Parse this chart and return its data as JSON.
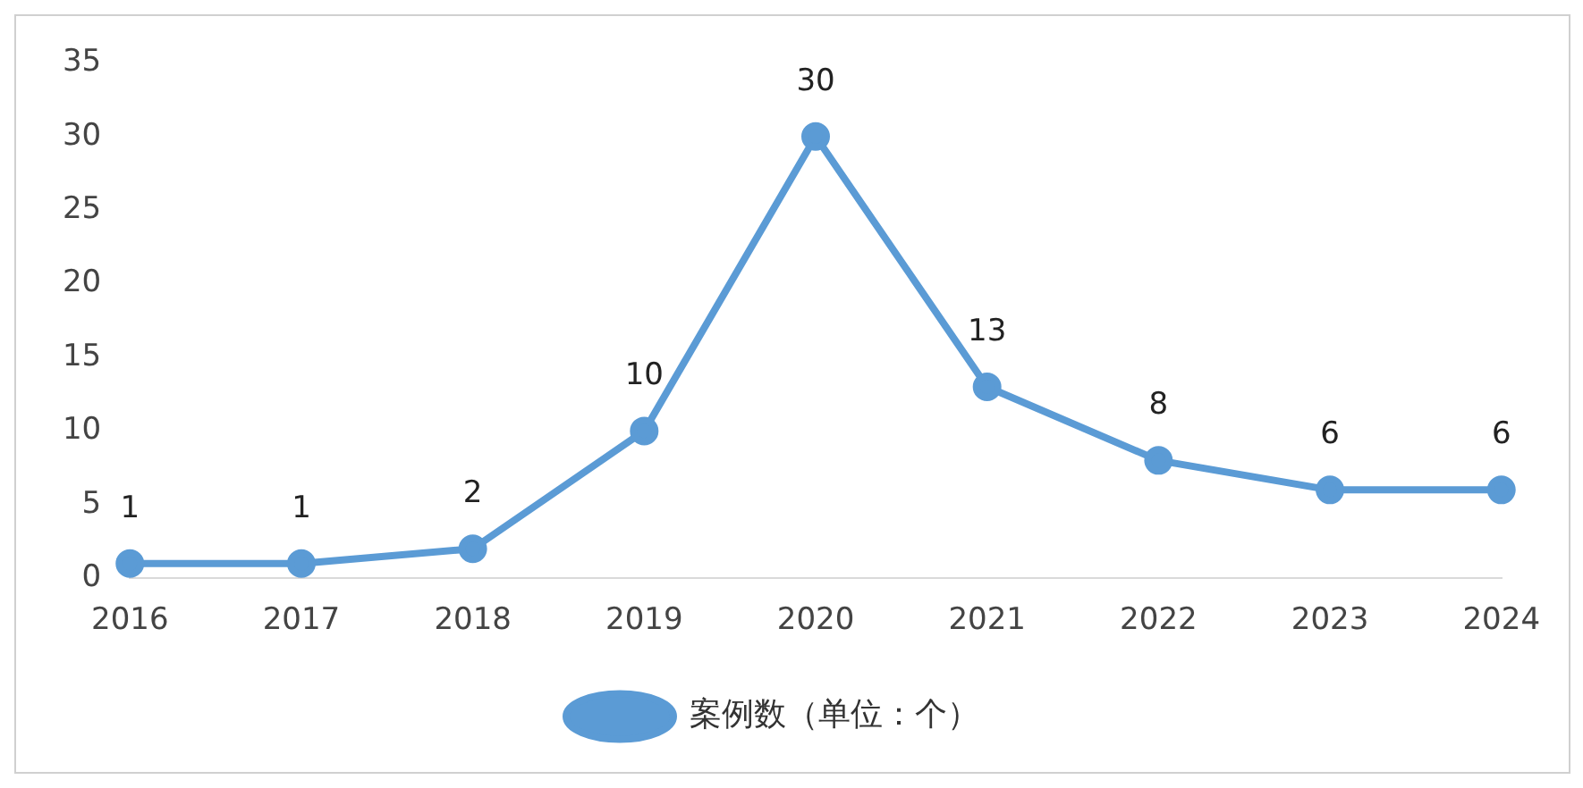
{
  "chart_data": {
    "type": "line",
    "categories": [
      "2016",
      "2017",
      "2018",
      "2019",
      "2020",
      "2021",
      "2022",
      "2023",
      "2024"
    ],
    "series": [
      {
        "name": "案例数（单位：个）",
        "color": "#5b9bd5",
        "values": [
          1,
          1,
          2,
          10,
          30,
          13,
          8,
          6,
          6
        ]
      }
    ],
    "ylim": [
      0,
      35
    ],
    "yticks": [
      0,
      5,
      10,
      15,
      20,
      25,
      30,
      35
    ],
    "grid": false,
    "legend": "bottom",
    "marker": "circle",
    "line_style": "solid",
    "data_labels": true
  }
}
